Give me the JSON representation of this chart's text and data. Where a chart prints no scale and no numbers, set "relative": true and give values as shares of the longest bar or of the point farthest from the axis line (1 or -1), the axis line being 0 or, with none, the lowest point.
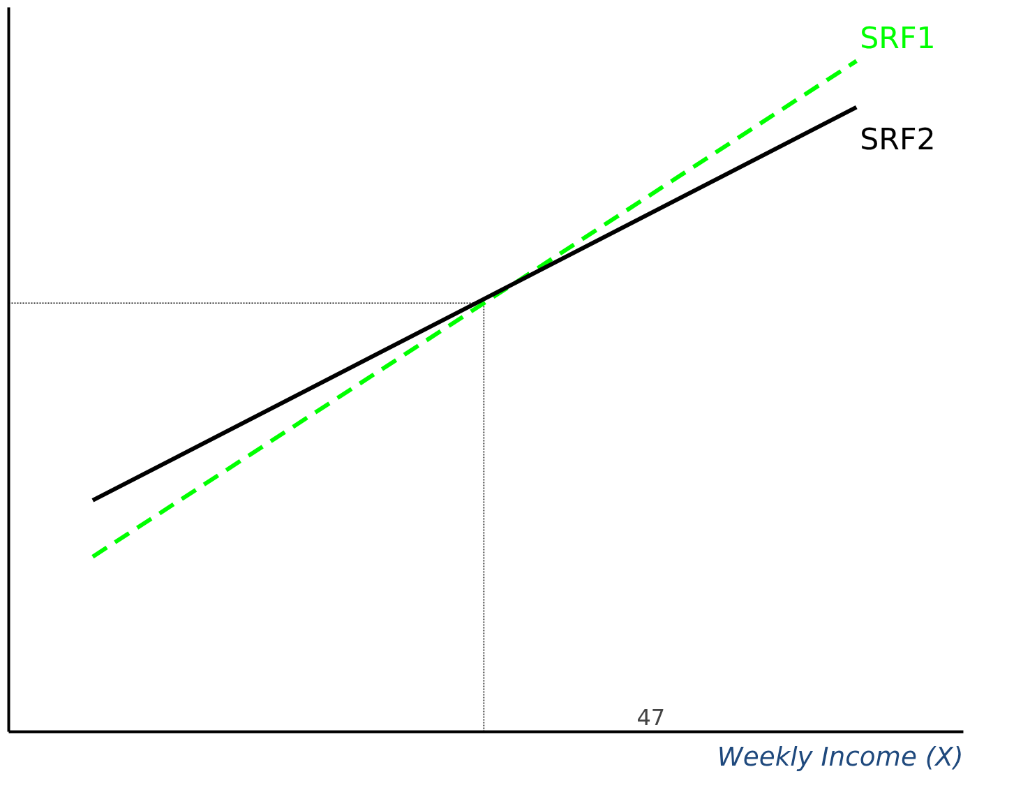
{
  "chart_data": {
    "type": "line",
    "relative": true,
    "xlabel": "Weekly Income (X)",
    "categories": [
      null,
      null,
      null
    ],
    "grid": false,
    "marker": "none",
    "series": [
      {
        "name": "SRF1",
        "color": "#00ff00",
        "line_style": "dashed",
        "values": [
          0.261,
          0.63,
          1
        ]
      },
      {
        "name": "SRF2",
        "color": "#000000",
        "line_style": "solid",
        "values": [
          0.345,
          0.638,
          0.931
        ]
      }
    ],
    "ref_lines": [
      {
        "axis": "y",
        "value": 0.639,
        "line_style": "dotted",
        "color": "#000000"
      }
    ],
    "annotations": [
      "47"
    ]
  }
}
